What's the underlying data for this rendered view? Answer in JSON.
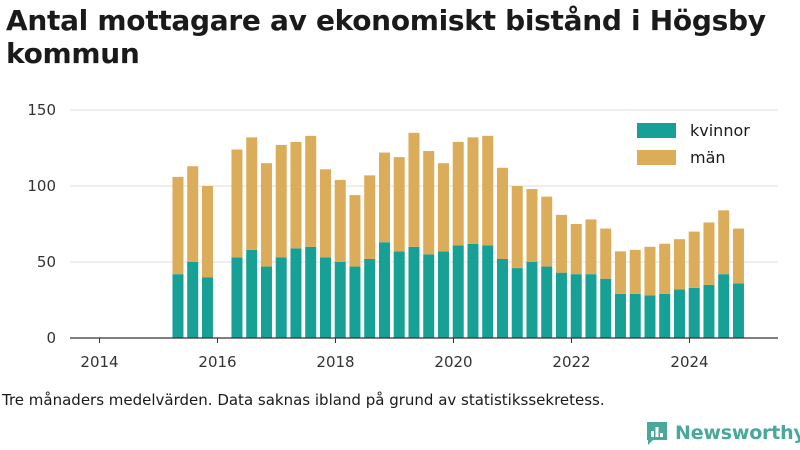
{
  "header": {
    "title": "Antal mottagare av ekonomiskt bistånd i Högsby kommun"
  },
  "footer": {
    "note": "Tre månaders medelvärden. Data saknas ibland på grund av statistikssekretess.",
    "brand": "Newsworthy"
  },
  "icons": {
    "brand_logo": "chat-bubble-bar-chart-icon"
  },
  "colors": {
    "kvinnor": "#17a096",
    "man": "#dbad5a",
    "grid": "#dddddd",
    "brand": "#4aa89a"
  },
  "chart_data": {
    "type": "bar",
    "stacked": true,
    "title": "Antal mottagare av ekonomiskt bistånd i Högsby kommun",
    "xlabel": "",
    "ylabel": "",
    "ylim": [
      0,
      150
    ],
    "yticks": [
      0,
      50,
      100,
      150
    ],
    "xticks": [
      "2014",
      "2016",
      "2018",
      "2020",
      "2022",
      "2024"
    ],
    "x_range": [
      2013.5,
      2025.5
    ],
    "grid": true,
    "legend_position": "top-right",
    "x": [
      2015.33,
      2015.58,
      2015.83,
      2016.33,
      2016.58,
      2016.83,
      2017.08,
      2017.33,
      2017.58,
      2017.83,
      2018.08,
      2018.33,
      2018.58,
      2018.83,
      2019.08,
      2019.33,
      2019.58,
      2019.83,
      2020.08,
      2020.33,
      2020.58,
      2020.83,
      2021.08,
      2021.33,
      2021.58,
      2021.83,
      2022.08,
      2022.33,
      2022.58,
      2022.83,
      2023.08,
      2023.33,
      2023.58,
      2023.83,
      2024.08,
      2024.33,
      2024.58,
      2024.83
    ],
    "series": [
      {
        "name": "kvinnor",
        "color": "#17a096",
        "values": [
          42,
          50,
          40,
          53,
          58,
          47,
          53,
          59,
          60,
          53,
          50,
          47,
          52,
          63,
          57,
          60,
          55,
          57,
          61,
          62,
          61,
          52,
          46,
          50,
          47,
          43,
          42,
          42,
          39,
          29,
          29,
          28,
          29,
          32,
          33,
          35,
          42,
          36
        ]
      },
      {
        "name": "män",
        "color": "#dbad5a",
        "values": [
          64,
          63,
          60,
          71,
          74,
          68,
          74,
          70,
          73,
          58,
          54,
          47,
          55,
          59,
          62,
          75,
          68,
          58,
          68,
          70,
          72,
          60,
          54,
          48,
          46,
          38,
          33,
          36,
          33,
          28,
          29,
          32,
          33,
          33,
          37,
          41,
          42,
          36
        ]
      }
    ]
  }
}
